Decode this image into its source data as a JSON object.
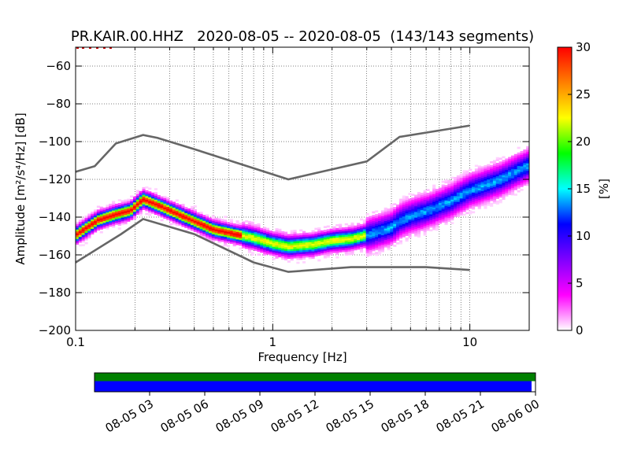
{
  "chart_data": {
    "type": "heatmap",
    "title": "PR.KAIR.00.HHZ   2020-08-05 -- 2020-08-05  (143/143 segments)",
    "xlabel": "Frequency [Hz]",
    "ylabel": "Amplitude [m²/s⁴/Hz] [dB]",
    "x_scale": "log",
    "xlim": [
      0.1,
      20
    ],
    "ylim": [
      -200,
      -50
    ],
    "grid": true,
    "x_major_ticks": [
      {
        "value": 0.1,
        "label": "0.1"
      },
      {
        "value": 1,
        "label": "1"
      },
      {
        "value": 10,
        "label": "10"
      }
    ],
    "y_ticks": [
      {
        "value": -60,
        "label": "−60"
      },
      {
        "value": -80,
        "label": "−80"
      },
      {
        "value": -100,
        "label": "−100"
      },
      {
        "value": -120,
        "label": "−120"
      },
      {
        "value": -140,
        "label": "−140"
      },
      {
        "value": -160,
        "label": "−160"
      },
      {
        "value": -180,
        "label": "−180"
      },
      {
        "value": -200,
        "label": "−200"
      }
    ],
    "noise_model_high": {
      "x": [
        0.1,
        0.125,
        0.16,
        0.22,
        0.26,
        0.4,
        1.2,
        3.0,
        4.4,
        10
      ],
      "y": [
        -116,
        -113,
        -101,
        -96.5,
        -98,
        -104,
        -120,
        -110.5,
        -97.5,
        -91.5
      ]
    },
    "noise_model_low": {
      "x": [
        0.1,
        0.17,
        0.22,
        0.4,
        0.8,
        1.2,
        2.5,
        6,
        10
      ],
      "y": [
        -164,
        -149,
        -141,
        -149,
        -164,
        -169,
        -166.5,
        -166.5,
        -168
      ]
    },
    "psd_mode": {
      "x": [
        0.1,
        0.13,
        0.16,
        0.19,
        0.22,
        0.26,
        0.35,
        0.5,
        0.8,
        1.0,
        1.2,
        1.6,
        2.0,
        2.5,
        3.0,
        4.0,
        4.4,
        5.0,
        6.0,
        8.0,
        10,
        14,
        20
      ],
      "y": [
        -150,
        -142,
        -139,
        -137,
        -131,
        -134,
        -140,
        -147,
        -151.5,
        -154.5,
        -156,
        -155,
        -153,
        -152,
        -150,
        -146,
        -142.5,
        -140,
        -137.5,
        -132,
        -126.5,
        -121,
        -113
      ]
    },
    "colorbar": {
      "label": "[%]",
      "range": [
        0,
        30
      ],
      "ticks": [
        {
          "value": 0,
          "label": "0"
        },
        {
          "value": 5,
          "label": "5"
        },
        {
          "value": 10,
          "label": "10"
        },
        {
          "value": 15,
          "label": "15"
        },
        {
          "value": 20,
          "label": "20"
        },
        {
          "value": 25,
          "label": "25"
        },
        {
          "value": 30,
          "label": "30"
        }
      ],
      "colors": [
        "#ffffff",
        "#ff00ff",
        "#7f00ff",
        "#0000ff",
        "#00ffff",
        "#00ff00",
        "#ffff00",
        "#ff7f00",
        "#ff0000"
      ]
    },
    "timeline": {
      "start": "2020-08-05 00:00",
      "end": "2020-08-06 00:00",
      "data_coverage_color": "#008000",
      "psd_coverage_color": "#0000ff",
      "psd_coverage_end_fraction": 0.992,
      "ticks": [
        "08-05 03",
        "08-05 06",
        "08-05 09",
        "08-05 12",
        "08-05 15",
        "08-05 18",
        "08-05 21",
        "08-06 00"
      ]
    }
  }
}
